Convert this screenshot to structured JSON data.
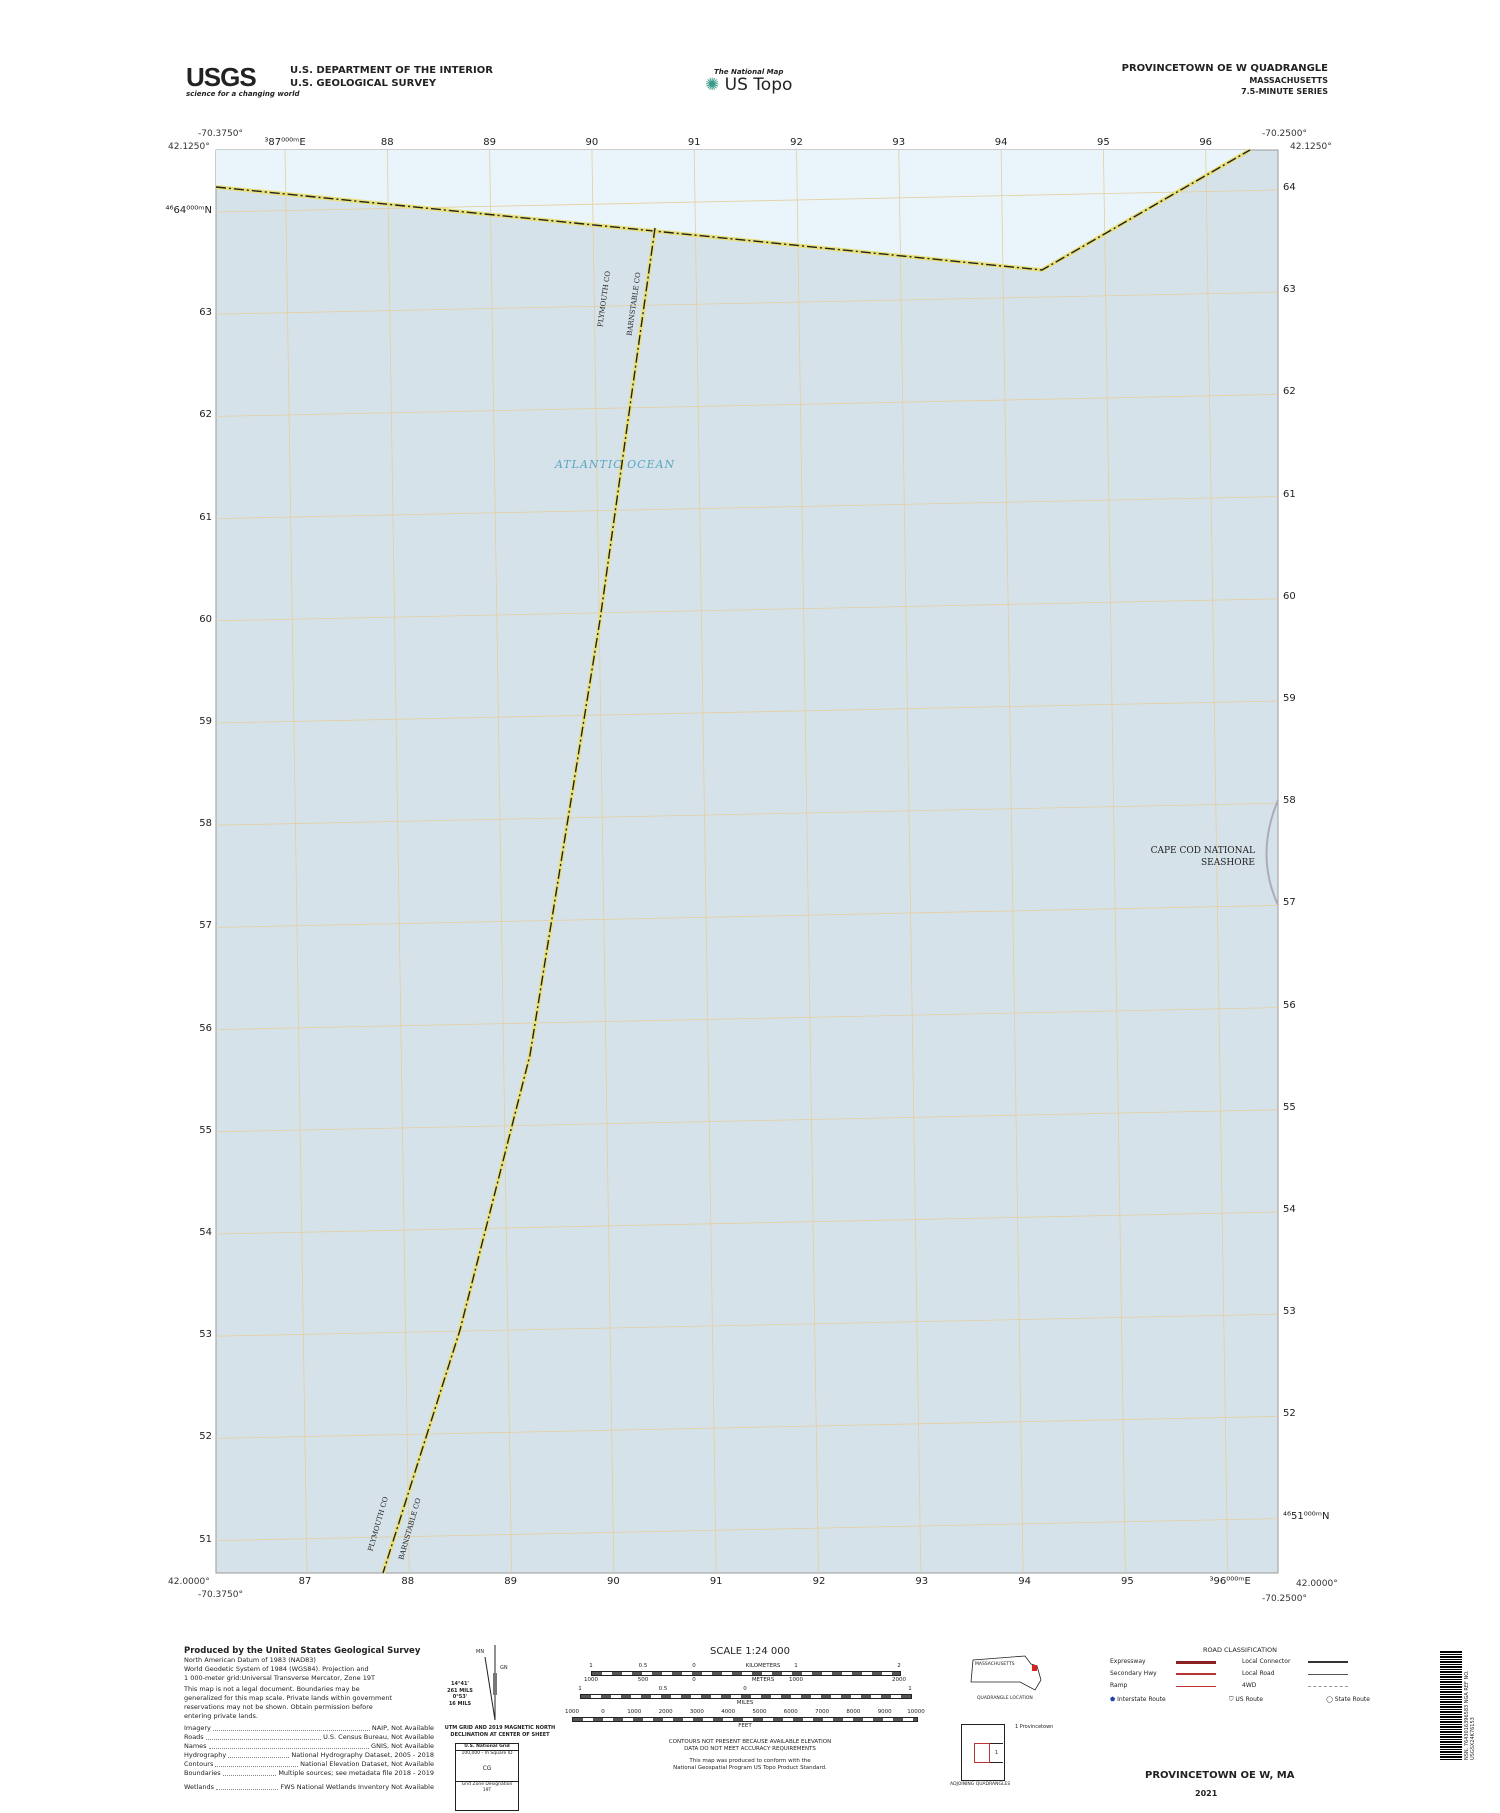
{
  "header": {
    "usgs_logo": "USGS",
    "usgs_tagline": "science for a changing world",
    "dept_line1": "U.S. DEPARTMENT OF THE INTERIOR",
    "dept_line2": "U.S. GEOLOGICAL SURVEY",
    "national_map": "The National Map",
    "us_topo": "US Topo",
    "quad_title": "PROVINCETOWN OE W QUADRANGLE",
    "state": "MASSACHUSETTS",
    "series": "7.5-MINUTE SERIES"
  },
  "corners": {
    "tl_lon": "-70.3750°",
    "tl_lat": "42.1250°",
    "tr_lon": "-70.2500°",
    "tr_lat": "42.1250°",
    "bl_lon": "-70.3750°",
    "bl_lat": "42.0000°",
    "br_lon": "-70.2500°",
    "br_lat": "42.0000°"
  },
  "grid": {
    "easting_top": [
      "³87⁰⁰⁰ᵐE",
      "88",
      "89",
      "90",
      "91",
      "92",
      "93",
      "94",
      "95",
      "96"
    ],
    "easting_bottom": [
      "87",
      "88",
      "89",
      "90",
      "91",
      "92",
      "93",
      "94",
      "95",
      "³96⁰⁰⁰ᵐE"
    ],
    "northing_left": [
      "⁴⁶64⁰⁰⁰ᵐN",
      "63",
      "62",
      "61",
      "60",
      "59",
      "58",
      "57",
      "56",
      "55",
      "54",
      "53",
      "52",
      "51"
    ],
    "northing_right": [
      "64",
      "63",
      "62",
      "61",
      "60",
      "59",
      "58",
      "57",
      "56",
      "55",
      "54",
      "53",
      "52",
      "⁴⁶51⁰⁰⁰ᵐN"
    ]
  },
  "map_labels": {
    "ocean": "ATLANTIC OCEAN",
    "county_west_top": "PLYMOUTH CO",
    "county_east_top": "BARNSTABLE CO",
    "county_west_bottom": "PLYMOUTH CO",
    "county_east_bottom": "BARNSTABLE CO",
    "seashore_1": "CAPE COD NATIONAL",
    "seashore_2": "SEASHORE"
  },
  "colors": {
    "water": "#d6e2ea",
    "open_water": "#eaf5fb",
    "grid": "#e4cfa0",
    "boundary": "#222222",
    "boundary_halo": "#e8e07a"
  },
  "footer": {
    "produced_by": "Produced by the United States Geological Survey",
    "datum_lines": [
      "North American Datum of 1983 (NAD83)",
      "World Geodetic System of 1984 (WGS84). Projection and",
      "1 000-meter grid:Universal Transverse Mercator, Zone 19T"
    ],
    "legal_lines": [
      "This map is not a legal document. Boundaries may be",
      "generalized for this map scale. Private lands within government",
      "reservations may not be shown. Obtain permission before",
      "entering private lands."
    ],
    "sources": [
      {
        "k": "Imagery",
        "v": "NAIP, Not Available"
      },
      {
        "k": "Roads",
        "v": "U.S. Census Bureau, Not Available"
      },
      {
        "k": "Names",
        "v": "GNIS, Not Available"
      },
      {
        "k": "Hydrography",
        "v": "National Hydrography Dataset, 2005 - 2018"
      },
      {
        "k": "Contours",
        "v": "National Elevation Dataset, Not Available"
      },
      {
        "k": "Boundaries",
        "v": "Multiple sources; see metadata file 2018 - 2019"
      },
      {
        "k": "Wetlands",
        "v": "FWS National Wetlands Inventory Not Available"
      }
    ],
    "declination": {
      "mn": "MN",
      "gn": "GN",
      "a1": "14°41'",
      "a2": "261 MILS",
      "a3": "0°53'",
      "a4": "16 MILS",
      "caption1": "UTM GRID AND 2019 MAGNETIC NORTH",
      "caption2": "DECLINATION AT CENTER OF SHEET"
    },
    "usng": {
      "title": "U.S. National Grid",
      "sub": "100,000 - m Square ID",
      "id": "CG",
      "gzd": "Grid Zone Designation",
      "zone": "19T"
    },
    "scale": {
      "title": "SCALE 1:24 000",
      "km_ticks": [
        "1",
        "0.5",
        "0",
        "KILOMETERS",
        "1",
        "2"
      ],
      "m_ticks": [
        "1000",
        "500",
        "0",
        "METERS",
        "1000",
        "2000"
      ],
      "mi_ticks": [
        "1",
        "0.5",
        "0",
        "1"
      ],
      "mi_label": "MILES",
      "ft_ticks": [
        "1000",
        "0",
        "1000",
        "2000",
        "3000",
        "4000",
        "5000",
        "6000",
        "7000",
        "8000",
        "9000",
        "10000"
      ],
      "ft_label": "FEET"
    },
    "contour_note1": "CONTOURS NOT PRESENT BECAUSE AVAILABLE ELEVATION",
    "contour_note2": "DATA DO NOT MEET ACCURACY REQUIREMENTS",
    "standard_note1": "This map was produced to conform with the",
    "standard_note2": "National Geospatial Program US Topo Product Standard.",
    "location": {
      "state": "MASSACHUSETTS",
      "caption": "QUADRANGLE LOCATION"
    },
    "adjoining": {
      "cell": "1",
      "list": "1 Provincetown",
      "caption": "ADJOINING QUADRANGLES"
    },
    "roads": {
      "title": "ROAD CLASSIFICATION",
      "items": [
        "Expressway",
        "Secondary Hwy",
        "Ramp",
        "Local Connector",
        "Local Road",
        "4WD"
      ],
      "shields": [
        "Interstate Route",
        "US Route",
        "State Route"
      ]
    },
    "bottom_title": "PROVINCETOWN OE W,  MA",
    "year": "2021",
    "barcode_text": "NSN. 7643016396583 NGA REF NO. USGSX24K76153"
  }
}
